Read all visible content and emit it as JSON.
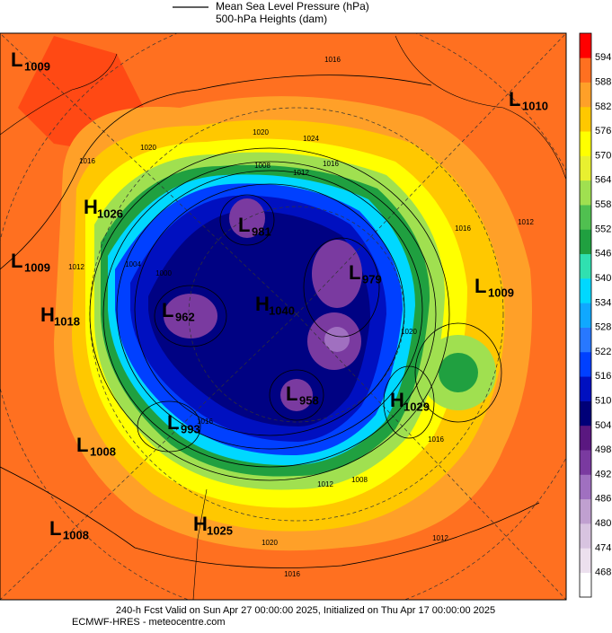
{
  "legend": {
    "items": [
      "Mean Sea Level Pressure (hPa)",
      "500-hPa Heights (dam)"
    ]
  },
  "colorbar": {
    "ticks": [
      468,
      474,
      480,
      486,
      492,
      498,
      504,
      510,
      516,
      522,
      528,
      534,
      540,
      546,
      552,
      558,
      564,
      570,
      576,
      582,
      588,
      594
    ],
    "colors": [
      "#ffffff",
      "#ece0ee",
      "#d8c4e0",
      "#c0a0d0",
      "#a070c0",
      "#7a3aa0",
      "#5a1880",
      "#000078",
      "#0010c0",
      "#0040ff",
      "#2878ff",
      "#10a8ff",
      "#00d8ff",
      "#30e0b0",
      "#20a040",
      "#50c050",
      "#a0e050",
      "#e8f030",
      "#ffff00",
      "#ffc800",
      "#ffa028",
      "#ff7020",
      "#ff0000"
    ]
  },
  "centers": [
    {
      "symbol": "L",
      "value": 1009
    },
    {
      "symbol": "L",
      "value": 1010
    },
    {
      "symbol": "H",
      "value": 1026
    },
    {
      "symbol": "L",
      "value": 1009
    },
    {
      "symbol": "L",
      "value": 1009
    },
    {
      "symbol": "H",
      "value": 1018
    },
    {
      "symbol": "L",
      "value": 962
    },
    {
      "symbol": "H",
      "value": 1040
    },
    {
      "symbol": "L",
      "value": 979
    },
    {
      "symbol": "L",
      "value": 981
    },
    {
      "symbol": "L",
      "value": 958
    },
    {
      "symbol": "H",
      "value": 1029
    },
    {
      "symbol": "L",
      "value": 993
    },
    {
      "symbol": "L",
      "value": 1008
    },
    {
      "symbol": "L",
      "value": 1008
    },
    {
      "symbol": "H",
      "value": 1025
    }
  ],
  "contour_labels": [
    1016,
    1016,
    1020,
    1020,
    1024,
    1016,
    1008,
    1012,
    1016,
    1012,
    1012,
    1004,
    1000,
    1020,
    1016,
    1012,
    1008,
    1016,
    1020,
    1016,
    1012
  ],
  "footer": {
    "line1": "240-h Fcst Valid on Sun Apr 27 00:00:00 2025, Initialized on Thu Apr 17 00:00:00 2025",
    "line2": "ECMWF-HRES  - meteocentre.com"
  }
}
